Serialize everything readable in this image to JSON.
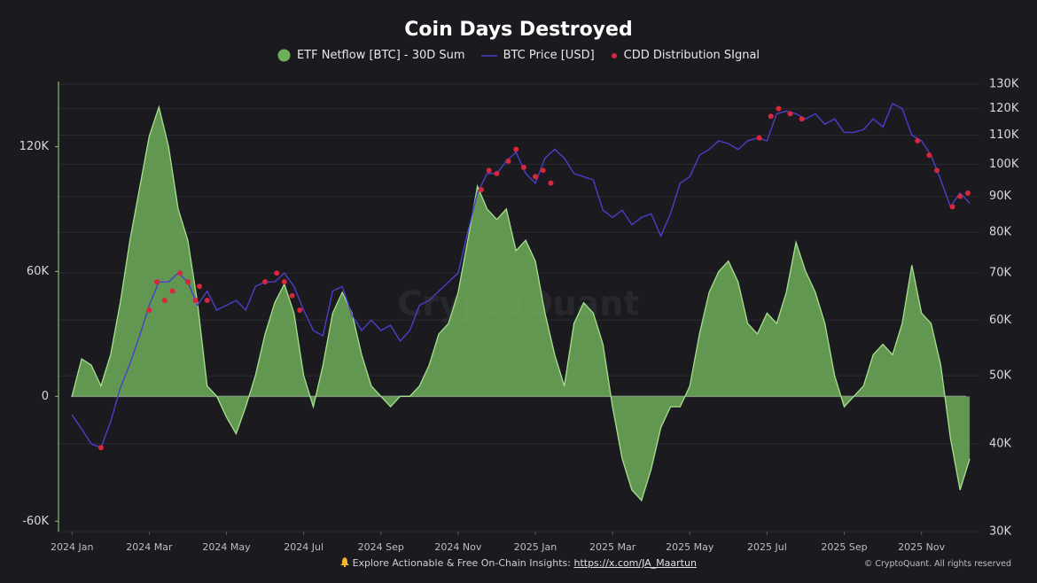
{
  "chart_data": {
    "type": "combo",
    "title": "Coin Days Destroyed",
    "watermark": "CryptoQuant",
    "footer": {
      "text": "Explore Actionable & Free On-Chain Insights:",
      "link": "https://x.com/JA_Maartun",
      "copyright": "© CryptoQuant. All rights reserved"
    },
    "x": [
      0,
      0.25,
      0.5,
      0.75,
      1,
      1.25,
      1.5,
      1.75,
      2,
      2.25,
      2.5,
      2.75,
      3,
      3.25,
      3.5,
      3.75,
      4,
      4.25,
      4.5,
      4.75,
      5,
      5.25,
      5.5,
      5.75,
      6,
      6.25,
      6.5,
      6.75,
      7,
      7.25,
      7.5,
      7.75,
      8,
      8.25,
      8.5,
      8.75,
      9,
      9.25,
      9.5,
      9.75,
      10,
      10.25,
      10.5,
      10.75,
      11,
      11.25,
      11.5,
      11.75,
      12,
      12.25,
      12.5,
      12.75,
      13,
      13.25,
      13.5,
      13.75,
      14,
      14.25,
      14.5,
      14.75,
      15,
      15.25,
      15.5,
      15.75,
      16,
      16.25,
      16.5,
      16.75,
      17,
      17.25,
      17.5,
      17.75,
      18,
      18.25,
      18.5,
      18.75,
      19,
      19.25,
      19.5,
      19.75,
      20,
      20.25,
      20.5,
      20.75,
      21,
      21.25,
      21.5,
      21.75,
      22,
      22.25,
      22.5,
      22.75,
      23,
      23.25
    ],
    "xlim": [
      -0.35,
      23.5
    ],
    "xticks": [
      {
        "value": 0,
        "label": "2024 Jan"
      },
      {
        "value": 2,
        "label": "2024 Mar"
      },
      {
        "value": 4,
        "label": "2024 May"
      },
      {
        "value": 6,
        "label": "2024 Jul"
      },
      {
        "value": 8,
        "label": "2024 Sep"
      },
      {
        "value": 10,
        "label": "2024 Nov"
      },
      {
        "value": 12,
        "label": "2025 Jan"
      },
      {
        "value": 14,
        "label": "2025 Mar"
      },
      {
        "value": 16,
        "label": "2025 May"
      },
      {
        "value": 18,
        "label": "2025 Jul"
      },
      {
        "value": 20,
        "label": "2025 Sep"
      },
      {
        "value": 22,
        "label": "2025 Nov"
      }
    ],
    "ylim": [
      -65000,
      150000
    ],
    "yticks": [
      {
        "value": -60000,
        "label": "-60K"
      },
      0,
      {
        "value": 60000,
        "label": "60K"
      },
      {
        "value": 120000,
        "label": "120K"
      }
    ],
    "y2lim": [
      30000,
      130000
    ],
    "y2log": true,
    "y2ticks": [
      {
        "value": 30000,
        "label": "30K"
      },
      {
        "value": 40000,
        "label": "40K"
      },
      {
        "value": 50000,
        "label": "50K"
      },
      {
        "value": 60000,
        "label": "60K"
      },
      {
        "value": 70000,
        "label": "70K"
      },
      {
        "value": 80000,
        "label": "80K"
      },
      {
        "value": 90000,
        "label": "90K"
      },
      {
        "value": 100000,
        "label": "100K"
      },
      {
        "value": 110000,
        "label": "110K"
      },
      {
        "value": 120000,
        "label": "120K"
      },
      {
        "value": 130000,
        "label": "130K"
      }
    ],
    "grid": true,
    "series": [
      {
        "name": "ETF Netflow [BTC] - 30D Sum",
        "type": "area",
        "color": "#6fae5a",
        "values": [
          0,
          18000,
          15000,
          5000,
          20000,
          45000,
          75000,
          100000,
          125000,
          139000,
          120000,
          90000,
          75000,
          45000,
          5000,
          0,
          -10000,
          -18000,
          -5000,
          10000,
          30000,
          45000,
          54000,
          40000,
          10000,
          -5000,
          15000,
          40000,
          50000,
          40000,
          20000,
          5000,
          0,
          -5000,
          0,
          0,
          5000,
          15000,
          30000,
          35000,
          50000,
          75000,
          101000,
          90000,
          85000,
          90000,
          70000,
          75000,
          65000,
          40000,
          20000,
          5000,
          35000,
          45000,
          40000,
          25000,
          -5000,
          -30000,
          -45000,
          -50000,
          -35000,
          -15000,
          -5000,
          -5000,
          5000,
          30000,
          50000,
          60000,
          65000,
          55000,
          35000,
          30000,
          40000,
          35000,
          50000,
          74000,
          60000,
          50000,
          35000,
          10000,
          -5000,
          0,
          5000,
          20000,
          25000,
          20000,
          35000,
          63000,
          40000,
          35000,
          15000,
          -20000,
          -45000,
          -30000
        ]
      },
      {
        "name": "BTC Price [USD]",
        "type": "line",
        "axis": "y2",
        "color": "#4a3fc9",
        "values": [
          44000,
          42000,
          40000,
          39500,
          43000,
          48000,
          52000,
          57000,
          63000,
          68000,
          68000,
          70000,
          68000,
          63000,
          66000,
          62000,
          63000,
          64000,
          62000,
          67000,
          68000,
          68000,
          70000,
          67000,
          62000,
          58000,
          57000,
          66000,
          67000,
          61000,
          58000,
          60000,
          58000,
          59000,
          56000,
          58000,
          63000,
          64000,
          66000,
          68000,
          70000,
          80000,
          91000,
          97000,
          97000,
          101000,
          104000,
          97000,
          94000,
          102000,
          105000,
          102000,
          97000,
          96000,
          95000,
          86000,
          84000,
          86000,
          82000,
          84000,
          85000,
          79000,
          85000,
          94000,
          96000,
          103000,
          105000,
          108000,
          107000,
          105000,
          108000,
          109000,
          108000,
          118000,
          119000,
          118000,
          116000,
          118000,
          114000,
          116000,
          111000,
          111000,
          112000,
          116000,
          113000,
          122000,
          120000,
          110000,
          108000,
          103000,
          95000,
          87000,
          91000,
          88000
        ]
      },
      {
        "name": "CDD Distribution SIgnal",
        "type": "scatter",
        "axis": "y2",
        "color": "#d7263d",
        "x": [
          0.75,
          2,
          2.2,
          2.4,
          2.6,
          2.8,
          3,
          3.2,
          3.3,
          3.5,
          5,
          5.3,
          5.5,
          5.7,
          5.9,
          10.6,
          10.8,
          11,
          11.3,
          11.5,
          11.7,
          12,
          12.2,
          12.4,
          17.8,
          18.1,
          18.3,
          18.6,
          18.9,
          21.9,
          22.2,
          22.4,
          22.8,
          23,
          23.2
        ],
        "values": [
          39500,
          62000,
          68000,
          64000,
          66000,
          70000,
          68000,
          64000,
          67000,
          64000,
          68000,
          70000,
          68000,
          65000,
          62000,
          92000,
          98000,
          97000,
          101000,
          105000,
          99000,
          96000,
          98000,
          94000,
          109000,
          117000,
          120000,
          118000,
          116000,
          108000,
          103000,
          98000,
          87000,
          90000,
          91000
        ]
      }
    ]
  }
}
